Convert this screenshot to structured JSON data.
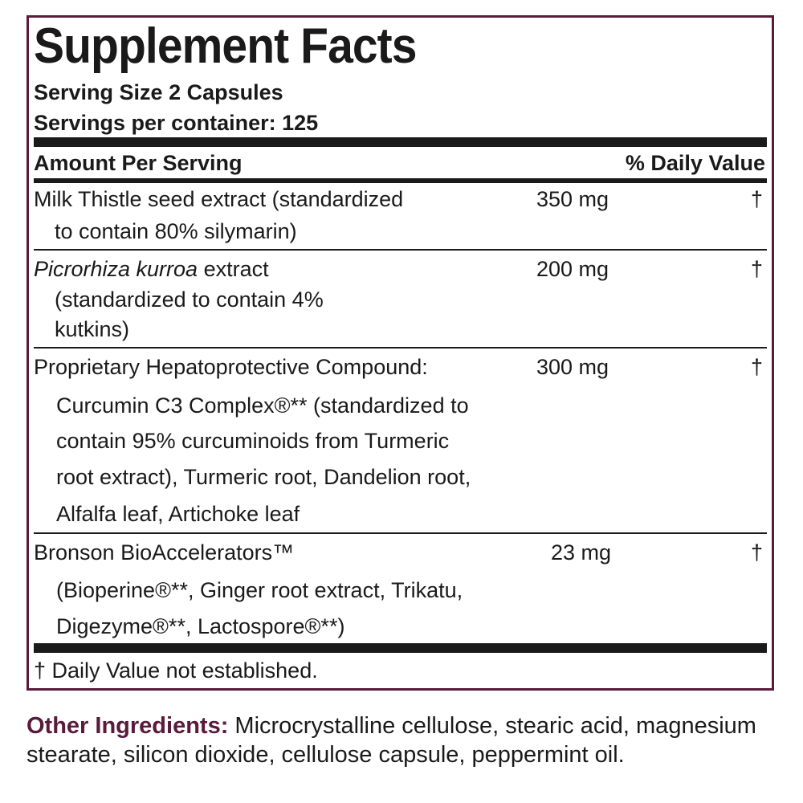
{
  "title": "Supplement Facts",
  "serving_size": "Serving Size 2 Capsules",
  "servings_per_container": "Servings per container: 125",
  "header": {
    "amount": "Amount Per Serving",
    "dv": "% Daily Value"
  },
  "rows": [
    {
      "name_lines": [
        "Milk Thistle seed extract (standardized",
        "to contain 80% silymarin)"
      ],
      "amount": "350 mg",
      "dv": "†"
    },
    {
      "name_italic": "Picrorhiza kurroa",
      "name_rest": " extract",
      "name_lines": [
        "(standardized to contain 4%",
        "kutkins)"
      ],
      "amount": "200 mg",
      "dv": "†"
    },
    {
      "name_lines": [
        "Proprietary Hepatoprotective Compound:",
        "Curcumin C3 Complex®** (standardized to",
        "contain 95% curcuminoids from Turmeric",
        "root extract), Turmeric root, Dandelion root,",
        "Alfalfa leaf, Artichoke leaf"
      ],
      "amount": "300 mg",
      "dv": "†"
    },
    {
      "name_lines": [
        "Bronson BioAccelerators™",
        "(Bioperine®**, Ginger root extract, Trikatu,",
        "Digezyme®**, Lactospore®**)"
      ],
      "amount": "23 mg",
      "dv": "†"
    }
  ],
  "footnote": "† Daily Value not established.",
  "other_ingredients": {
    "label": "Other Ingredients:",
    "text": " Microcrystalline cellulose, stearic acid, magnesium stearate, silicon dioxide, cellulose capsule, peppermint oil."
  },
  "colors": {
    "border": "#5a1a3c",
    "text": "#1a1a1a",
    "label": "#5a1a3c"
  }
}
